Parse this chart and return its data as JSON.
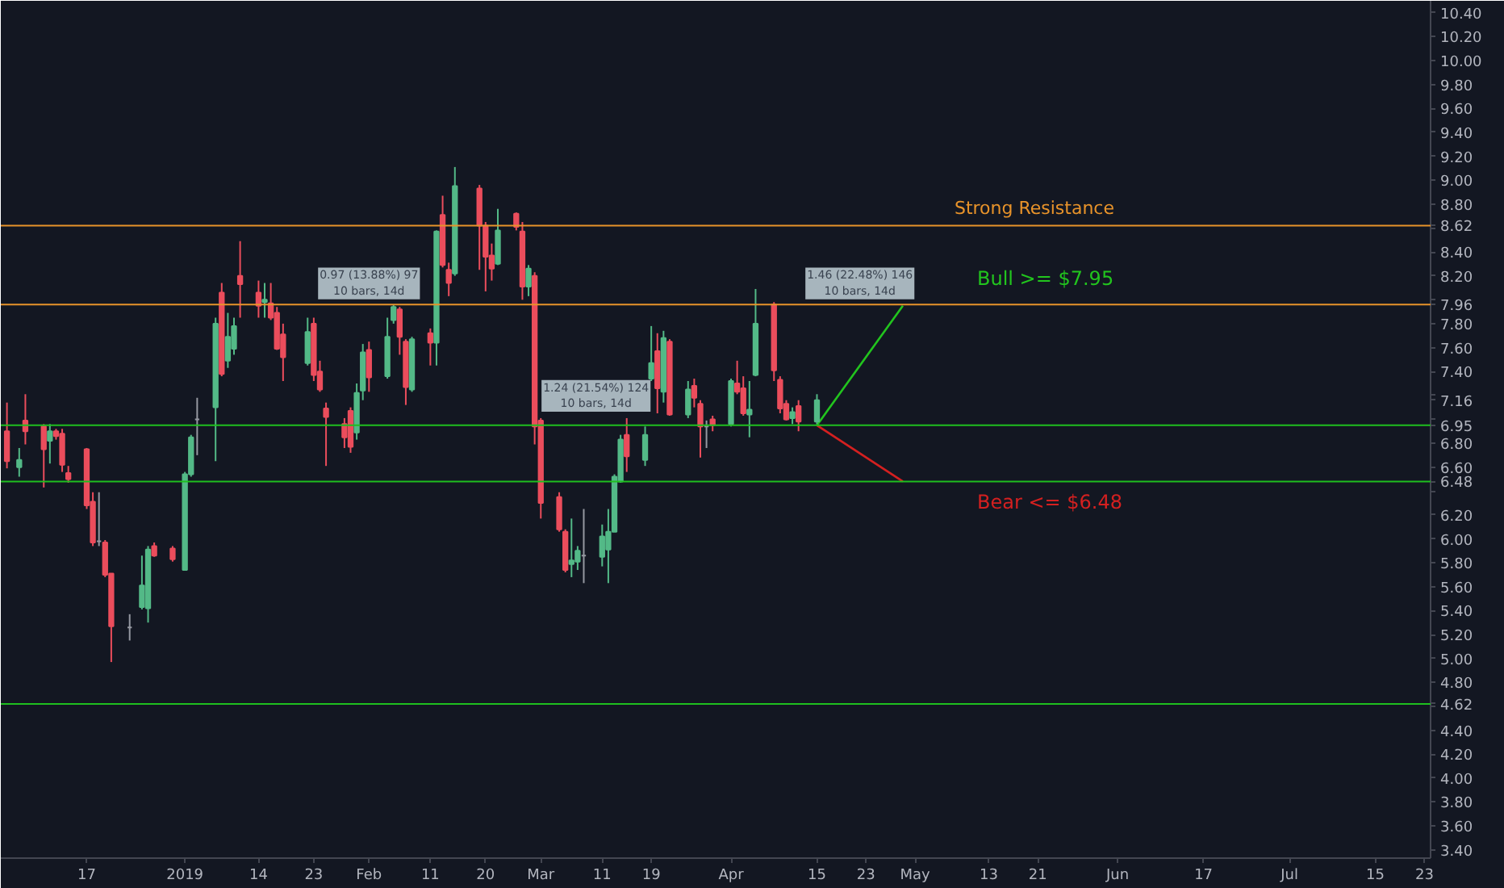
{
  "chart_data": {
    "type": "candlestick",
    "x": [
      "2018-12-04",
      "2018-12-06",
      "2018-12-07",
      "2018-12-10",
      "2018-12-11",
      "2018-12-12",
      "2018-12-13",
      "2018-12-14",
      "2018-12-17",
      "2018-12-18",
      "2018-12-19",
      "2018-12-20",
      "2018-12-21",
      "2018-12-24",
      "2018-12-26",
      "2018-12-27",
      "2018-12-28",
      "2018-12-31",
      "2019-01-02",
      "2019-01-03",
      "2019-01-04",
      "2019-01-07",
      "2019-01-08",
      "2019-01-09",
      "2019-01-10",
      "2019-01-11",
      "2019-01-14",
      "2019-01-15",
      "2019-01-16",
      "2019-01-17",
      "2019-01-18",
      "2019-01-22",
      "2019-01-23",
      "2019-01-24",
      "2019-01-25",
      "2019-01-28",
      "2019-01-29",
      "2019-01-30",
      "2019-01-31",
      "2019-02-01",
      "2019-02-04",
      "2019-02-05",
      "2019-02-06",
      "2019-02-07",
      "2019-02-08",
      "2019-02-11",
      "2019-02-12",
      "2019-02-13",
      "2019-02-14",
      "2019-02-15",
      "2019-02-19",
      "2019-02-20",
      "2019-02-21",
      "2019-02-22",
      "2019-02-25",
      "2019-02-26",
      "2019-02-27",
      "2019-02-28",
      "2019-03-01",
      "2019-03-04",
      "2019-03-05",
      "2019-03-06",
      "2019-03-07",
      "2019-03-08",
      "2019-03-11",
      "2019-03-12",
      "2019-03-13",
      "2019-03-14",
      "2019-03-15",
      "2019-03-18",
      "2019-03-19",
      "2019-03-20",
      "2019-03-21",
      "2019-03-22",
      "2019-03-25",
      "2019-03-26",
      "2019-03-27",
      "2019-03-28",
      "2019-03-29",
      "2019-04-01",
      "2019-04-02",
      "2019-04-03",
      "2019-04-04",
      "2019-04-05",
      "2019-04-08",
      "2019-04-09",
      "2019-04-10",
      "2019-04-11",
      "2019-04-12",
      "2019-04-15"
    ],
    "ohlc": [
      [
        6.9,
        7.14,
        6.59,
        6.65
      ],
      [
        6.6,
        6.76,
        6.52,
        6.66
      ],
      [
        6.99,
        7.21,
        6.79,
        6.9
      ],
      [
        6.94,
        6.96,
        6.43,
        6.75
      ],
      [
        6.82,
        6.96,
        6.63,
        6.9
      ],
      [
        6.9,
        6.92,
        6.83,
        6.86
      ],
      [
        6.88,
        6.92,
        6.56,
        6.62
      ],
      [
        6.55,
        6.61,
        6.47,
        6.5
      ],
      [
        6.75,
        6.76,
        6.25,
        6.28
      ],
      [
        6.31,
        6.39,
        5.94,
        5.97
      ],
      [
        5.98,
        6.39,
        5.94,
        5.98
      ],
      [
        5.97,
        5.99,
        5.68,
        5.7
      ],
      [
        5.71,
        5.71,
        4.97,
        5.27
      ],
      [
        5.26,
        5.37,
        5.15,
        5.26
      ],
      [
        5.43,
        5.86,
        5.41,
        5.61
      ],
      [
        5.42,
        5.94,
        5.3,
        5.91
      ],
      [
        5.94,
        5.97,
        5.85,
        5.86
      ],
      [
        5.92,
        5.94,
        5.81,
        5.83
      ],
      [
        5.74,
        6.56,
        5.74,
        6.54
      ],
      [
        6.54,
        6.87,
        6.52,
        6.85
      ],
      [
        7.0,
        7.18,
        6.7,
        7.0
      ],
      [
        7.1,
        7.85,
        6.65,
        7.8
      ],
      [
        8.06,
        8.14,
        7.36,
        7.38
      ],
      [
        7.49,
        7.89,
        7.43,
        7.69
      ],
      [
        7.59,
        7.85,
        7.54,
        7.78
      ],
      [
        8.2,
        8.49,
        7.85,
        8.13
      ],
      [
        8.06,
        8.16,
        7.85,
        7.95
      ],
      [
        7.98,
        8.14,
        7.85,
        8.0
      ],
      [
        7.97,
        8.14,
        7.83,
        7.85
      ],
      [
        7.89,
        7.94,
        7.58,
        7.59
      ],
      [
        7.71,
        7.8,
        7.32,
        7.52
      ],
      [
        7.47,
        7.85,
        7.45,
        7.73
      ],
      [
        7.8,
        7.85,
        7.32,
        7.37
      ],
      [
        7.4,
        7.49,
        7.23,
        7.25
      ],
      [
        7.09,
        7.14,
        6.61,
        7.02
      ],
      [
        6.96,
        7.01,
        6.76,
        6.85
      ],
      [
        7.07,
        7.1,
        6.72,
        6.77
      ],
      [
        6.89,
        7.3,
        6.83,
        7.22
      ],
      [
        7.24,
        7.63,
        7.16,
        7.56
      ],
      [
        7.58,
        7.65,
        7.23,
        7.35
      ],
      [
        7.36,
        7.85,
        7.34,
        7.69
      ],
      [
        7.83,
        7.96,
        7.8,
        7.94
      ],
      [
        7.92,
        7.94,
        7.54,
        7.69
      ],
      [
        7.65,
        7.67,
        7.12,
        7.27
      ],
      [
        7.25,
        7.69,
        7.23,
        7.67
      ],
      [
        7.72,
        7.76,
        7.45,
        7.64
      ],
      [
        7.64,
        8.58,
        7.45,
        8.57
      ],
      [
        8.71,
        8.87,
        8.27,
        8.29
      ],
      [
        8.25,
        8.31,
        8.03,
        8.14
      ],
      [
        8.22,
        9.11,
        8.2,
        8.95
      ],
      [
        8.93,
        8.96,
        8.25,
        8.62
      ],
      [
        8.62,
        8.65,
        8.07,
        8.36
      ],
      [
        8.37,
        8.47,
        8.16,
        8.26
      ],
      [
        8.3,
        8.76,
        8.29,
        8.58
      ],
      [
        8.72,
        8.73,
        8.58,
        8.61
      ],
      [
        8.57,
        8.65,
        8.0,
        8.11
      ],
      [
        8.11,
        8.29,
        8.03,
        8.26
      ],
      [
        8.2,
        8.23,
        6.79,
        6.94
      ],
      [
        6.99,
        7.01,
        6.17,
        6.3
      ],
      [
        6.35,
        6.39,
        6.06,
        6.08
      ],
      [
        6.06,
        6.08,
        5.72,
        5.74
      ],
      [
        5.79,
        6.17,
        5.68,
        5.82
      ],
      [
        5.81,
        5.94,
        5.74,
        5.9
      ],
      [
        5.86,
        6.25,
        5.63,
        5.86
      ],
      [
        5.85,
        6.12,
        5.77,
        6.02
      ],
      [
        5.91,
        6.25,
        5.63,
        6.06
      ],
      [
        6.06,
        6.54,
        6.06,
        6.52
      ],
      [
        6.48,
        6.87,
        6.47,
        6.83
      ],
      [
        6.87,
        7.01,
        6.56,
        6.69
      ],
      [
        6.66,
        6.94,
        6.61,
        6.87
      ],
      [
        7.34,
        7.78,
        7.32,
        7.47
      ],
      [
        7.57,
        7.72,
        7.05,
        7.26
      ],
      [
        7.23,
        7.74,
        7.14,
        7.68
      ],
      [
        7.65,
        7.67,
        7.03,
        7.04
      ],
      [
        7.04,
        7.32,
        7.01,
        7.25
      ],
      [
        7.28,
        7.34,
        7.1,
        7.18
      ],
      [
        7.13,
        7.16,
        6.68,
        6.94
      ],
      [
        6.94,
        6.99,
        6.76,
        6.94
      ],
      [
        7.0,
        7.03,
        6.9,
        6.95
      ],
      [
        6.96,
        7.34,
        6.94,
        7.32
      ],
      [
        7.3,
        7.49,
        7.21,
        7.23
      ],
      [
        7.26,
        7.36,
        7.03,
        7.05
      ],
      [
        7.04,
        7.32,
        6.85,
        7.08
      ],
      [
        7.37,
        8.09,
        7.36,
        7.8
      ],
      [
        7.96,
        7.98,
        7.32,
        7.41
      ],
      [
        7.33,
        7.36,
        7.05,
        7.09
      ],
      [
        7.13,
        7.16,
        6.99,
        7.0
      ],
      [
        7.01,
        7.1,
        6.96,
        7.06
      ],
      [
        7.11,
        7.16,
        6.9,
        6.98
      ],
      [
        6.98,
        7.21,
        6.96,
        7.16
      ]
    ],
    "colors": [
      "#eb4d5c",
      "#53b987",
      "#eb4d5c",
      "#eb4d5c",
      "#53b987",
      "#eb4d5c",
      "#eb4d5c",
      "#eb4d5c",
      "#eb4d5c",
      "#eb4d5c",
      "#9598a1",
      "#eb4d5c",
      "#eb4d5c",
      "#9598a1",
      "#53b987",
      "#53b987",
      "#eb4d5c",
      "#eb4d5c",
      "#53b987",
      "#53b987",
      "#9598a1",
      "#53b987",
      "#eb4d5c",
      "#53b987",
      "#53b987",
      "#eb4d5c",
      "#eb4d5c",
      "#53b987",
      "#eb4d5c",
      "#eb4d5c",
      "#eb4d5c",
      "#53b987",
      "#eb4d5c",
      "#eb4d5c",
      "#eb4d5c",
      "#eb4d5c",
      "#eb4d5c",
      "#53b987",
      "#53b987",
      "#eb4d5c",
      "#53b987",
      "#53b987",
      "#eb4d5c",
      "#eb4d5c",
      "#53b987",
      "#eb4d5c",
      "#53b987",
      "#eb4d5c",
      "#eb4d5c",
      "#53b987",
      "#eb4d5c",
      "#eb4d5c",
      "#eb4d5c",
      "#53b987",
      "#eb4d5c",
      "#eb4d5c",
      "#53b987",
      "#eb4d5c",
      "#eb4d5c",
      "#eb4d5c",
      "#eb4d5c",
      "#53b987",
      "#53b987",
      "#9598a1",
      "#53b987",
      "#53b987",
      "#53b987",
      "#53b987",
      "#eb4d5c",
      "#53b987",
      "#53b987",
      "#eb4d5c",
      "#53b987",
      "#eb4d5c",
      "#53b987",
      "#eb4d5c",
      "#eb4d5c",
      "#9598a1",
      "#eb4d5c",
      "#53b987",
      "#eb4d5c",
      "#eb4d5c",
      "#53b987",
      "#53b987",
      "#eb4d5c",
      "#eb4d5c",
      "#eb4d5c",
      "#53b987",
      "#eb4d5c",
      "#53b987"
    ],
    "series": [
      {
        "type": "line",
        "color": "#22c41e",
        "x": [
          "2019-04-15",
          "2019-04-29"
        ],
        "values": [
          6.95,
          7.95
        ]
      },
      {
        "type": "line",
        "color": "#d42020",
        "x": [
          "2019-04-15",
          "2019-04-29"
        ],
        "values": [
          6.95,
          6.48
        ]
      }
    ],
    "ref_lines": [
      {
        "axis": "y",
        "value": 8.62,
        "label": "Strong Resistance",
        "color": "#e8932a"
      },
      {
        "axis": "y",
        "value": 7.96,
        "color": "#e8932a"
      },
      {
        "axis": "y",
        "value": 6.95,
        "color": "#1fbf1f"
      },
      {
        "axis": "y",
        "value": 6.48,
        "color": "#1fbf1f"
      },
      {
        "axis": "y",
        "value": 4.62,
        "color": "#1fbf1f"
      }
    ],
    "annotations": [
      {
        "text": "0.97 (13.88%) 97\n10 bars, 14d",
        "x": "2019-02-01",
        "y": 7.95
      },
      {
        "text": "1.24 (21.54%) 124\n10 bars, 14d",
        "x": "2019-03-10",
        "y": 7.01
      },
      {
        "text": "1.46 (22.48%) 146\n10 bars, 14d",
        "x": "2019-04-22",
        "y": 7.95
      },
      "Bull >= $7.95",
      "Bear <= $6.48"
    ],
    "xlim": [
      "2018-12-03",
      "2019-07-24"
    ],
    "xticks": [
      {
        "value": "2018-12-17",
        "label": "17"
      },
      {
        "value": "2019-01-02",
        "label": "2019"
      },
      {
        "value": "2019-01-14",
        "label": "14"
      },
      {
        "value": "2019-01-23",
        "label": "23"
      },
      {
        "value": "2019-02-01",
        "label": "Feb"
      },
      {
        "value": "2019-02-11",
        "label": "11"
      },
      {
        "value": "2019-02-20",
        "label": "20"
      },
      {
        "value": "2019-03-01",
        "label": "Mar"
      },
      {
        "value": "2019-03-11",
        "label": "11"
      },
      {
        "value": "2019-03-19",
        "label": "19"
      },
      {
        "value": "2019-04-01",
        "label": "Apr"
      },
      {
        "value": "2019-04-15",
        "label": "15"
      },
      {
        "value": "2019-04-23",
        "label": "23"
      },
      {
        "value": "2019-05-01",
        "label": "May"
      },
      {
        "value": "2019-05-13",
        "label": "13"
      },
      {
        "value": "2019-05-21",
        "label": "21"
      },
      {
        "value": "2019-06-03",
        "label": "Jun"
      },
      {
        "value": "2019-06-17",
        "label": "17"
      },
      {
        "value": "2019-07-01",
        "label": "Jul"
      },
      {
        "value": "2019-07-15",
        "label": "15"
      },
      {
        "value": "2019-07-23",
        "label": "23"
      }
    ],
    "ylim": [
      3.33,
      10.5
    ],
    "yticks": [
      {
        "value": 3.4,
        "label": "3.40"
      },
      {
        "value": 3.6,
        "label": "3.60"
      },
      {
        "value": 3.8,
        "label": "3.80"
      },
      {
        "value": 4.0,
        "label": "4.00"
      },
      {
        "value": 4.2,
        "label": "4.20"
      },
      {
        "value": 4.4,
        "label": "4.40"
      },
      {
        "value": 4.6,
        "label": null
      },
      {
        "value": 4.8,
        "label": "4.80"
      },
      {
        "value": 5.0,
        "label": "5.00"
      },
      {
        "value": 5.2,
        "label": "5.20"
      },
      {
        "value": 5.4,
        "label": "5.40"
      },
      {
        "value": 5.6,
        "label": "5.60"
      },
      {
        "value": 5.8,
        "label": "5.80"
      },
      {
        "value": 6.0,
        "label": "6.00"
      },
      {
        "value": 6.2,
        "label": "6.20"
      },
      {
        "value": 6.4,
        "label": null
      },
      {
        "value": 6.6,
        "label": "6.60"
      },
      {
        "value": 6.8,
        "label": "6.80"
      },
      {
        "value": 7.0,
        "label": null
      },
      {
        "value": 7.2,
        "label": null
      },
      {
        "value": 7.4,
        "label": "7.40"
      },
      {
        "value": 7.6,
        "label": "7.60"
      },
      {
        "value": 7.8,
        "label": "7.80"
      },
      {
        "value": 8.0,
        "label": null
      },
      {
        "value": 8.2,
        "label": "8.20"
      },
      {
        "value": 8.4,
        "label": "8.40"
      },
      {
        "value": 8.6,
        "label": null
      },
      {
        "value": 8.8,
        "label": "8.80"
      },
      {
        "value": 9.0,
        "label": "9.00"
      },
      {
        "value": 9.2,
        "label": "9.20"
      },
      {
        "value": 9.4,
        "label": "9.40"
      },
      {
        "value": 9.6,
        "label": "9.60"
      },
      {
        "value": 9.8,
        "label": "9.80"
      },
      {
        "value": 10.0,
        "label": "10.00"
      },
      {
        "value": 10.2,
        "label": "10.20"
      },
      {
        "value": 10.4,
        "label": "10.40"
      },
      {
        "value": 4.62,
        "label": "4.62"
      },
      {
        "value": 6.48,
        "label": "6.48"
      },
      {
        "value": 6.95,
        "label": "6.95"
      },
      {
        "value": 7.16,
        "label": "7.16"
      },
      {
        "value": 7.96,
        "label": "7.96"
      },
      {
        "value": 8.62,
        "label": "8.62"
      }
    ]
  }
}
